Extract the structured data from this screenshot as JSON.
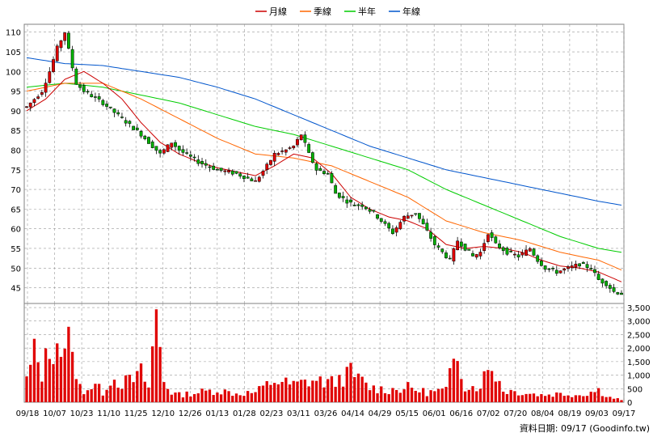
{
  "chart_data": {
    "type": "candlestick",
    "legend": [
      {
        "name": "月線",
        "color": "#cc0000"
      },
      {
        "name": "季線",
        "color": "#ff6600"
      },
      {
        "name": "半年",
        "color": "#00cc00"
      },
      {
        "name": "年線",
        "color": "#0055cc"
      }
    ],
    "legend_placement": "top-center",
    "price_axis": {
      "ticks": [
        45,
        50,
        55,
        60,
        65,
        70,
        75,
        80,
        85,
        90,
        95,
        100,
        105,
        110
      ],
      "range": [
        41,
        112
      ],
      "side": "left"
    },
    "volume_axis": {
      "ticks": [
        "3,500",
        "3,000",
        "2,500",
        "2,000",
        "1,500",
        "1,000",
        "500",
        "0"
      ],
      "tick_values": [
        3500,
        3000,
        2500,
        2000,
        1500,
        1000,
        500,
        0
      ],
      "range": [
        0,
        3650
      ],
      "side": "right"
    },
    "x_labels": [
      "09/18",
      "10/07",
      "10/23",
      "11/10",
      "11/25",
      "12/10",
      "12/26",
      "01/13",
      "01/28",
      "02/23",
      "03/11",
      "03/26",
      "04/14",
      "04/29",
      "05/15",
      "06/01",
      "06/16",
      "07/02",
      "07/20",
      "08/04",
      "08/19",
      "09/03",
      "09/17"
    ],
    "grid": true,
    "price_path": [
      [
        0,
        91
      ],
      [
        2,
        93
      ],
      [
        4,
        95
      ],
      [
        6,
        100
      ],
      [
        8,
        106
      ],
      [
        10,
        110
      ],
      [
        12,
        101
      ],
      [
        13,
        97
      ],
      [
        15,
        95
      ],
      [
        20,
        92
      ],
      [
        25,
        88
      ],
      [
        30,
        84
      ],
      [
        35,
        79
      ],
      [
        38,
        82
      ],
      [
        40,
        80
      ],
      [
        45,
        77
      ],
      [
        50,
        75
      ],
      [
        55,
        74
      ],
      [
        60,
        72
      ],
      [
        63,
        76
      ],
      [
        65,
        79
      ],
      [
        68,
        80
      ],
      [
        70,
        81
      ],
      [
        72,
        84
      ],
      [
        74,
        79
      ],
      [
        76,
        75
      ],
      [
        79,
        74
      ],
      [
        81,
        69
      ],
      [
        84,
        67
      ],
      [
        86,
        66
      ],
      [
        88,
        66
      ],
      [
        91,
        64
      ],
      [
        94,
        61
      ],
      [
        96,
        59
      ],
      [
        99,
        63
      ],
      [
        102,
        64
      ],
      [
        104,
        61
      ],
      [
        107,
        56
      ],
      [
        109,
        54
      ],
      [
        111,
        52
      ],
      [
        113,
        57
      ],
      [
        115,
        55
      ],
      [
        117,
        53
      ],
      [
        119,
        54
      ],
      [
        121,
        59
      ],
      [
        123,
        56
      ],
      [
        126,
        54
      ],
      [
        129,
        53
      ],
      [
        132,
        55
      ],
      [
        134,
        52
      ],
      [
        136,
        50
      ],
      [
        139,
        49
      ],
      [
        142,
        50
      ],
      [
        145,
        51
      ],
      [
        148,
        50
      ],
      [
        150,
        47
      ],
      [
        152,
        46
      ],
      [
        154,
        44
      ],
      [
        156,
        43.5
      ]
    ],
    "ma_month": [
      [
        0,
        90
      ],
      [
        5,
        93
      ],
      [
        10,
        98
      ],
      [
        15,
        100
      ],
      [
        20,
        97
      ],
      [
        25,
        93
      ],
      [
        30,
        87
      ],
      [
        35,
        82
      ],
      [
        40,
        79
      ],
      [
        45,
        77
      ],
      [
        50,
        75.5
      ],
      [
        55,
        74.5
      ],
      [
        60,
        73.5
      ],
      [
        65,
        76
      ],
      [
        70,
        79
      ],
      [
        75,
        78
      ],
      [
        80,
        74
      ],
      [
        85,
        68
      ],
      [
        90,
        65
      ],
      [
        95,
        63
      ],
      [
        100,
        62
      ],
      [
        105,
        60
      ],
      [
        110,
        56
      ],
      [
        115,
        55
      ],
      [
        120,
        55.5
      ],
      [
        125,
        55
      ],
      [
        130,
        54
      ],
      [
        135,
        52
      ],
      [
        140,
        50.5
      ],
      [
        145,
        50
      ],
      [
        150,
        49
      ],
      [
        156,
        46.5
      ]
    ],
    "ma_quarter": [
      [
        0,
        95
      ],
      [
        10,
        97
      ],
      [
        20,
        97
      ],
      [
        30,
        93
      ],
      [
        40,
        88
      ],
      [
        50,
        83
      ],
      [
        60,
        79
      ],
      [
        70,
        78
      ],
      [
        80,
        76
      ],
      [
        90,
        72
      ],
      [
        100,
        68
      ],
      [
        110,
        62
      ],
      [
        120,
        59
      ],
      [
        130,
        57
      ],
      [
        140,
        54
      ],
      [
        150,
        52
      ],
      [
        156,
        49.5
      ]
    ],
    "ma_half": [
      [
        0,
        96
      ],
      [
        10,
        97
      ],
      [
        20,
        96
      ],
      [
        30,
        94
      ],
      [
        40,
        92
      ],
      [
        50,
        89
      ],
      [
        60,
        86
      ],
      [
        70,
        84
      ],
      [
        80,
        81
      ],
      [
        90,
        78
      ],
      [
        100,
        75
      ],
      [
        110,
        70
      ],
      [
        120,
        66
      ],
      [
        130,
        62
      ],
      [
        140,
        58
      ],
      [
        150,
        55
      ],
      [
        156,
        54
      ]
    ],
    "ma_year": [
      [
        0,
        103.5
      ],
      [
        10,
        102
      ],
      [
        20,
        101.5
      ],
      [
        30,
        100
      ],
      [
        40,
        98.5
      ],
      [
        50,
        96
      ],
      [
        60,
        93
      ],
      [
        70,
        89
      ],
      [
        80,
        85
      ],
      [
        90,
        81
      ],
      [
        100,
        78
      ],
      [
        110,
        75
      ],
      [
        120,
        73
      ],
      [
        130,
        71
      ],
      [
        140,
        69
      ],
      [
        150,
        67
      ],
      [
        156,
        66
      ]
    ],
    "volume_path": [
      [
        0,
        900
      ],
      [
        2,
        2000
      ],
      [
        4,
        1200
      ],
      [
        6,
        2200
      ],
      [
        8,
        2600
      ],
      [
        10,
        1800
      ],
      [
        12,
        3000
      ],
      [
        13,
        800
      ],
      [
        15,
        500
      ],
      [
        18,
        700
      ],
      [
        20,
        400
      ],
      [
        22,
        1000
      ],
      [
        25,
        800
      ],
      [
        28,
        900
      ],
      [
        30,
        1200
      ],
      [
        32,
        600
      ],
      [
        34,
        3600
      ],
      [
        36,
        900
      ],
      [
        38,
        400
      ],
      [
        40,
        300
      ],
      [
        45,
        400
      ],
      [
        50,
        500
      ],
      [
        55,
        350
      ],
      [
        60,
        400
      ],
      [
        65,
        900
      ],
      [
        70,
        700
      ],
      [
        75,
        900
      ],
      [
        80,
        800
      ],
      [
        85,
        1200
      ],
      [
        90,
        600
      ],
      [
        95,
        500
      ],
      [
        100,
        600
      ],
      [
        105,
        400
      ],
      [
        110,
        500
      ],
      [
        113,
        2100
      ],
      [
        115,
        700
      ],
      [
        118,
        600
      ],
      [
        122,
        1500
      ],
      [
        125,
        500
      ],
      [
        130,
        400
      ],
      [
        135,
        300
      ],
      [
        140,
        350
      ],
      [
        145,
        300
      ],
      [
        150,
        500
      ],
      [
        153,
        200
      ],
      [
        156,
        100
      ]
    ]
  },
  "source_label": "資料日期: 09/17 (Goodinfo.tw)"
}
